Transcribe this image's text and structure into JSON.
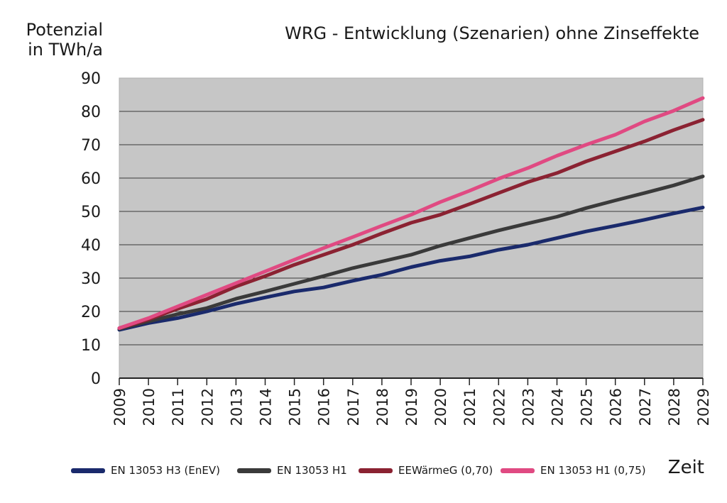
{
  "chart_data": {
    "type": "line",
    "title": "WRG - Entwicklung (Szenarien) ohne Zinseffekte",
    "ylabel_line1": "Potenzial",
    "ylabel_line2": "in TWh/a",
    "xlabel": "Zeit",
    "ylim": [
      0,
      90
    ],
    "yticks": [
      "0",
      "10",
      "20",
      "30",
      "40",
      "50",
      "60",
      "70",
      "80",
      "90"
    ],
    "x": [
      "2009",
      "2010",
      "2011",
      "2012",
      "2013",
      "2014",
      "2015",
      "2016",
      "2017",
      "2018",
      "2019",
      "2020",
      "2021",
      "2022",
      "2023",
      "2024",
      "2025",
      "2026",
      "2027",
      "2028",
      "2029"
    ],
    "grid": true,
    "legend_position": "bottom",
    "series": [
      {
        "name": "EN 13053 H3 (EnEV)",
        "color": "#1a2a6c",
        "values": [
          14.5,
          16.5,
          18,
          20,
          22.3,
          24.2,
          26,
          27.2,
          29.2,
          31,
          33.3,
          35.2,
          36.5,
          38.5,
          40,
          42,
          44,
          45.7,
          47.5,
          49.4,
          51.2
        ]
      },
      {
        "name": "EN 13053 H1",
        "color": "#3a3a3a",
        "values": [
          14.8,
          17,
          19.2,
          21,
          23.8,
          26,
          28.3,
          30.6,
          33,
          35,
          37,
          39.7,
          42,
          44.3,
          46.4,
          48.4,
          51,
          53.3,
          55.5,
          57.8,
          60.5
        ]
      },
      {
        "name": "EEWärmeG (0,70)",
        "color": "#8b2232",
        "values": [
          15,
          17.6,
          20.8,
          23.7,
          27.5,
          30.6,
          34,
          37,
          40,
          43.4,
          46.6,
          49,
          52.2,
          55.5,
          58.8,
          61.5,
          65,
          68,
          71,
          74.4,
          77.5
        ]
      },
      {
        "name": "EN 13053 H1 (0,75)",
        "color": "#e04a82",
        "values": [
          15,
          18,
          21.5,
          25,
          28.5,
          32,
          35.5,
          39,
          42.3,
          45.7,
          49,
          52.8,
          56.2,
          59.8,
          63,
          66.7,
          70,
          73,
          77,
          80.2,
          84
        ]
      }
    ]
  }
}
